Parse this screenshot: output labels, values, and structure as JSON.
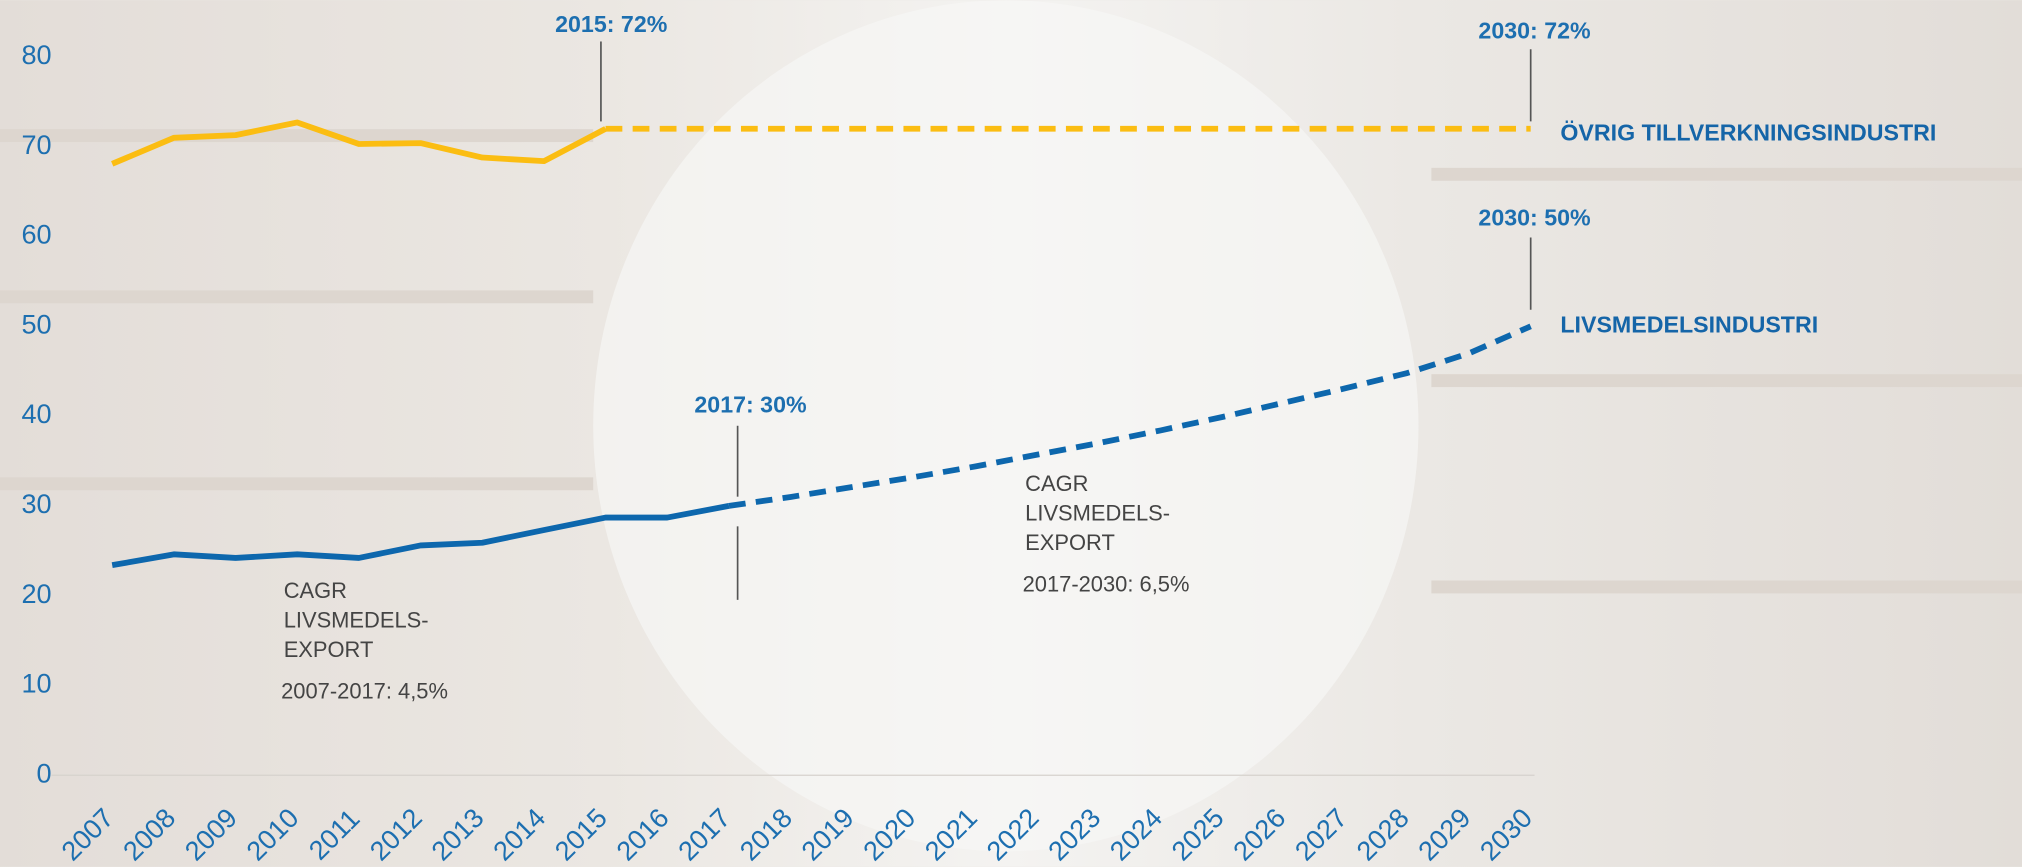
{
  "chart_data": {
    "type": "line",
    "categories": [
      "2007",
      "2008",
      "2009",
      "2010",
      "2011",
      "2012",
      "2013",
      "2014",
      "2015",
      "2016",
      "2017",
      "2018",
      "2019",
      "2020",
      "2021",
      "2022",
      "2023",
      "2024",
      "2025",
      "2026",
      "2027",
      "2028",
      "2029",
      "2030"
    ],
    "ylim": [
      0,
      80
    ],
    "yticks": [
      0,
      10,
      20,
      30,
      40,
      50,
      60,
      70,
      80
    ],
    "series": [
      {
        "name": "ÖVRIG TILLVERKNINGSINDUSTRI",
        "color": "#fbbd12",
        "values": [
          68.1,
          71.0,
          71.3,
          72.7,
          70.3,
          70.4,
          68.8,
          68.4,
          72,
          null,
          null,
          null,
          null,
          null,
          null,
          null,
          null,
          null,
          null,
          null,
          null,
          null,
          null,
          null
        ],
        "projection": [
          null,
          null,
          null,
          null,
          null,
          null,
          null,
          null,
          72,
          72,
          72,
          72,
          72,
          72,
          72,
          72,
          72,
          72,
          72,
          72,
          72,
          72,
          72,
          72
        ]
      },
      {
        "name": "LIVSMEDELSINDUSTRI",
        "color": "#0d67ad",
        "values": [
          23.4,
          24.6,
          24.2,
          24.6,
          24.2,
          25.6,
          25.9,
          27.3,
          28.7,
          28.7,
          30,
          null,
          null,
          null,
          null,
          null,
          null,
          null,
          null,
          null,
          null,
          null,
          null,
          null
        ],
        "projection": [
          null,
          null,
          null,
          null,
          null,
          null,
          null,
          null,
          null,
          null,
          30,
          31.0,
          32.1,
          33.2,
          34.4,
          35.7,
          37.0,
          38.4,
          39.9,
          41.5,
          43.1,
          44.8,
          47.0,
          50
        ]
      }
    ],
    "annotations": [
      "2015: 72%",
      "2030: 72%",
      "2030: 50%",
      "2017: 30%"
    ],
    "notes": [
      {
        "lines": [
          "CAGR",
          "LIVSMEDELS-",
          "EXPORT"
        ],
        "rate": "2007-2017: 4,5%"
      },
      {
        "lines": [
          "CAGR",
          "LIVSMEDELS-",
          "EXPORT"
        ],
        "rate": "2017-2030: 6,5%"
      }
    ]
  }
}
